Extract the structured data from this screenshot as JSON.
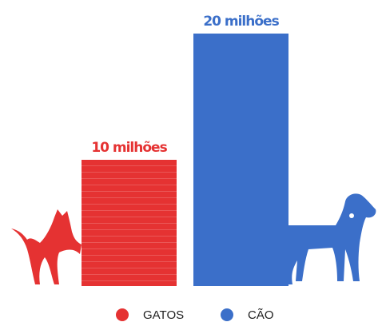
{
  "chart_data": {
    "type": "bar",
    "categories": [
      "GATOS",
      "CÃO"
    ],
    "values": [
      10,
      20
    ],
    "value_labels": [
      "10 milhões",
      "20 milhões"
    ],
    "colors": [
      "#e53232",
      "#3b6fc9"
    ]
  }
}
